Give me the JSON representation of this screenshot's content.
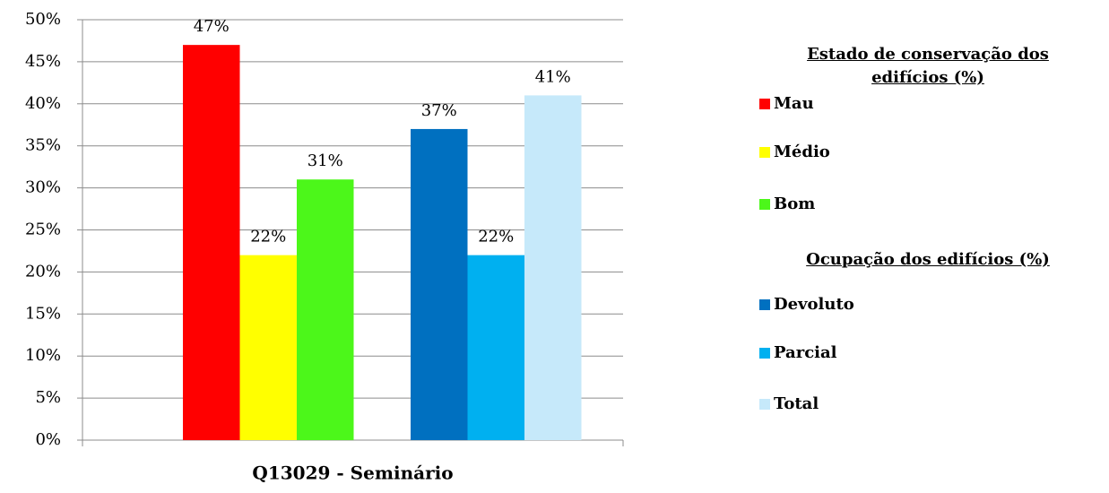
{
  "chart_data": {
    "type": "bar",
    "categories": [
      "Q13029 - Seminário"
    ],
    "ylim": [
      0,
      50
    ],
    "yticks": [
      {
        "value": 0,
        "label": "0%"
      },
      {
        "value": 5,
        "label": "5%"
      },
      {
        "value": 10,
        "label": "10%"
      },
      {
        "value": 15,
        "label": "15%"
      },
      {
        "value": 20,
        "label": "20%"
      },
      {
        "value": 25,
        "label": "25%"
      },
      {
        "value": 30,
        "label": "30%"
      },
      {
        "value": 35,
        "label": "35%"
      },
      {
        "value": 40,
        "label": "40%"
      },
      {
        "value": 45,
        "label": "45%"
      },
      {
        "value": 50,
        "label": "50%"
      }
    ],
    "grid": true,
    "legend": "right",
    "groups": [
      {
        "name": "Estado de conservação dos edifícios (%)",
        "series": [
          {
            "name": "Mau",
            "color": "#ff0000",
            "values": [
              47
            ],
            "value_labels": [
              "47%"
            ]
          },
          {
            "name": "Médio",
            "color": "#ffff00",
            "values": [
              22
            ],
            "value_labels": [
              "22%"
            ]
          },
          {
            "name": "Bom",
            "color": "#4cf71a",
            "values": [
              31
            ],
            "value_labels": [
              "31%"
            ]
          }
        ]
      },
      {
        "name": "Ocupação dos edifícios (%)",
        "series": [
          {
            "name": "Devoluto",
            "color": "#0070c0",
            "values": [
              37
            ],
            "value_labels": [
              "37%"
            ]
          },
          {
            "name": "Parcial",
            "color": "#00b0f0",
            "values": [
              22
            ],
            "value_labels": [
              "22%"
            ]
          },
          {
            "name": "Total",
            "color": "#c6e9fa",
            "values": [
              41
            ],
            "value_labels": [
              "41%"
            ]
          }
        ]
      }
    ]
  }
}
